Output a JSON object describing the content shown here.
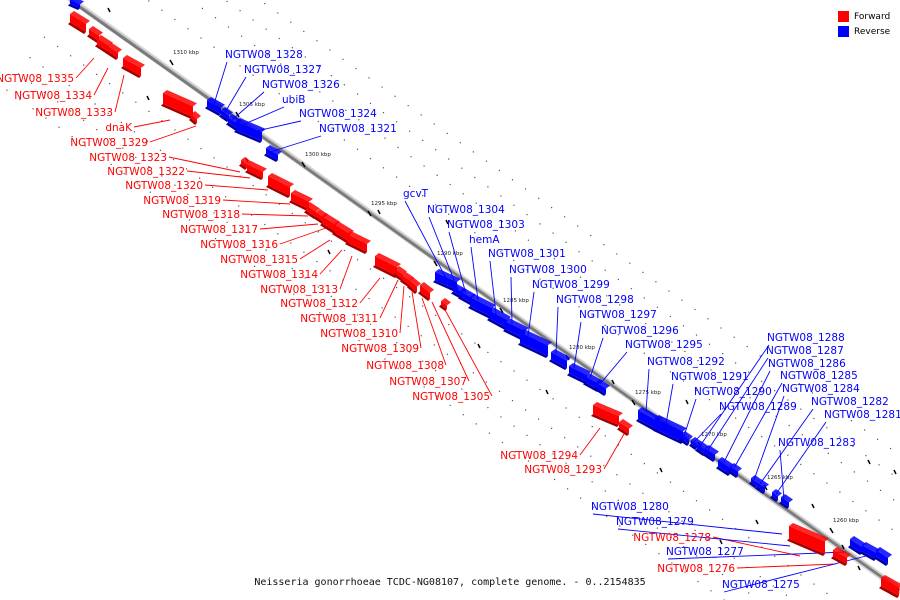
{
  "legend": [
    {
      "label": "Forward",
      "color": "#ff0000"
    },
    {
      "label": "Reverse",
      "color": "#0000ff"
    }
  ],
  "caption": "Neisseria gonorrhoeae TCDC-NG08107, complete genome. - 0..2154835",
  "ticks": [
    "1310 kbp",
    "1305 kbp",
    "1300 kbp",
    "1295 kbp",
    "1290 kbp",
    "1285 kbp",
    "1280 kbp",
    "1275 kbp",
    "1270 kbp",
    "1265 kbp",
    "1260 kbp"
  ],
  "genes_forward": [
    "NGTW08_1335",
    "NGTW08_1334",
    "NGTW08_1333",
    "dnaK",
    "NGTW08_1329",
    "NGTW08_1323",
    "NGTW08_1322",
    "NGTW08_1320",
    "NGTW08_1319",
    "NGTW08_1318",
    "NGTW08_1317",
    "NGTW08_1316",
    "NGTW08_1315",
    "NGTW08_1314",
    "NGTW08_1313",
    "NGTW08_1312",
    "NGTW08_1311",
    "NGTW08_1310",
    "NGTW08_1309",
    "NGTW08_1308",
    "NGTW08_1307",
    "NGTW08_1305",
    "NGTW08_1294",
    "NGTW08_1293",
    "NGTW08_1278",
    "NGTW08_1276"
  ],
  "genes_reverse": [
    "NGTW08_1328",
    "NGTW08_1327",
    "NGTW08_1326",
    "ubiB",
    "NGTW08_1324",
    "NGTW08_1321",
    "gcvT",
    "NGTW08_1304",
    "NGTW08_1303",
    "hemA",
    "NGTW08_1301",
    "NGTW08_1300",
    "NGTW08_1299",
    "NGTW08_1298",
    "NGTW08_1297",
    "NGTW08_1296",
    "NGTW08_1295",
    "NGTW08_1292",
    "NGTW08_1291",
    "NGTW08_1290",
    "NGTW08_1289",
    "NGTW08_1288",
    "NGTW08_1287",
    "NGTW08_1286",
    "NGTW08_1285",
    "NGTW08_1284",
    "NGTW08_1282",
    "NGTW08_1281",
    "NGTW08_1283",
    "NGTW08_1280",
    "NGTW08_1279",
    "NGTW08_1277",
    "NGTW08_1275"
  ]
}
